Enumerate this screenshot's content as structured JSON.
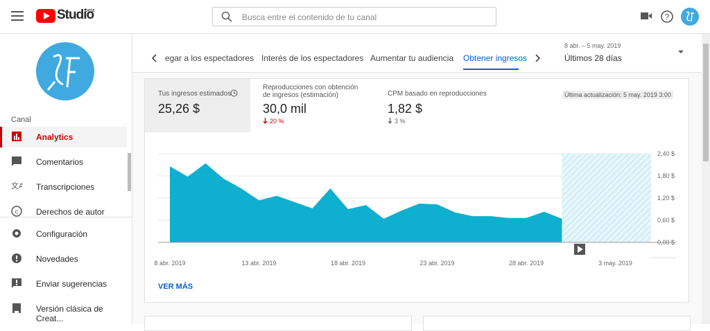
{
  "header": {
    "logo": "Studio",
    "badge": "beta",
    "search_placeholder": "Busca entre el contenido de tu canal"
  },
  "sidebar": {
    "section": "Canal",
    "items": [
      "Analytics",
      "Comentarios",
      "Transcripciones",
      "Derechos de autor",
      "Configuración",
      "Novedades",
      "Enviar sugerencias",
      "Versión clásica de Creat..."
    ]
  },
  "tabs": [
    "egar a los espectadores",
    "Interés de los espectadores",
    "Aumentar tu audiencia",
    "Obtener ingresos"
  ],
  "date_range": {
    "range": "8 abr. – 5 may. 2019",
    "label": "Últimos 28 días"
  },
  "metrics": [
    {
      "label": "Tus ingresos estimados",
      "value": "25,26 $"
    },
    {
      "label": "Reproducciones con obtención de ingresos (estimación)",
      "value": "30,0 mil",
      "change": "20 %"
    },
    {
      "label": "CPM basado en reproducciones",
      "value": "1,82 $",
      "change": "3 %"
    }
  ],
  "last_update": "Última actualización: 5 may. 2019 3:00",
  "link": "VER MÁS",
  "chart_data": {
    "type": "area",
    "color": "#0fb0cf",
    "categories": [
      "8 abr. 2019",
      null,
      null,
      null,
      null,
      "13 abr. 2019",
      null,
      null,
      null,
      null,
      "18 abr. 2019",
      null,
      null,
      null,
      null,
      "23 abr. 2019",
      null,
      null,
      null,
      null,
      "28 abr. 2019",
      null,
      null,
      null,
      null,
      "3 may. 2019",
      null,
      null
    ],
    "values": [
      2.06,
      1.78,
      2.14,
      1.73,
      1.46,
      1.14,
      1.26,
      1.09,
      0.92,
      1.46,
      0.9,
      1.01,
      0.64,
      0.86,
      1.05,
      1.03,
      0.81,
      0.71,
      0.71,
      0.66,
      0.66,
      0.83,
      0.64,
      null,
      null,
      null,
      null,
      null
    ],
    "ylim": [
      0,
      2.4
    ],
    "yticks": [
      {
        "value": 0,
        "label": "0,00 $"
      },
      {
        "value": 0.6,
        "label": "0,60 $"
      },
      {
        "value": 1.2,
        "label": "1,20 $"
      },
      {
        "value": 1.8,
        "label": "1,80 $"
      },
      {
        "value": 2.4,
        "label": "2,40 $"
      }
    ],
    "grid": true
  }
}
